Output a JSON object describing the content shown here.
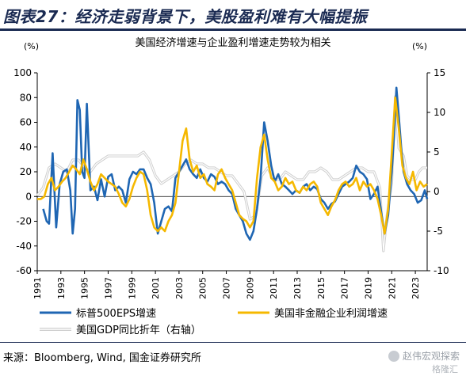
{
  "figure": {
    "title": "图表27：经济走弱背景下，美股盈利难有大幅提振",
    "source": "来源：Bloomberg, Wind, 国金证券研究所",
    "watermark": "赵伟宏观探索",
    "watermark_sub": "格隆汇"
  },
  "chart_data": {
    "type": "line",
    "title": "美国经济增速与企业盈利增速走势较为相关",
    "left_unit": "(%)",
    "right_unit": "(%)",
    "x_ticks": [
      "1991",
      "1993",
      "1995",
      "1997",
      "1999",
      "2001",
      "2003",
      "2005",
      "2007",
      "2009",
      "2011",
      "2013",
      "2015",
      "2017",
      "2019",
      "2021",
      "2023"
    ],
    "xlim": [
      1991,
      2024
    ],
    "ylim_left": [
      -60,
      100
    ],
    "yticks_left": [
      100,
      80,
      60,
      40,
      20,
      0,
      -20,
      -40,
      -60
    ],
    "ylim_right": [
      -10,
      15
    ],
    "yticks_right": [
      15,
      10,
      5,
      0,
      -5,
      -10
    ],
    "grid": false,
    "legend": "bottom",
    "series": [
      {
        "name": "标普500EPS增速",
        "axis": "left",
        "color": "#1f66b3",
        "x": [
          1991.5,
          1991.8,
          1992.0,
          1992.3,
          1992.6,
          1992.9,
          1993.2,
          1993.5,
          1993.8,
          1994.0,
          1994.2,
          1994.4,
          1994.6,
          1994.8,
          1995.0,
          1995.2,
          1995.5,
          1995.8,
          1996.1,
          1996.4,
          1996.7,
          1997.0,
          1997.3,
          1997.6,
          1997.9,
          1998.2,
          1998.5,
          1998.8,
          1999.1,
          1999.4,
          1999.7,
          2000.0,
          2000.3,
          2000.6,
          2000.9,
          2001.2,
          2001.5,
          2001.8,
          2002.1,
          2002.4,
          2002.7,
          2003.0,
          2003.3,
          2003.6,
          2003.9,
          2004.2,
          2004.5,
          2004.8,
          2005.1,
          2005.4,
          2005.7,
          2006.0,
          2006.3,
          2006.6,
          2006.9,
          2007.2,
          2007.5,
          2007.8,
          2008.1,
          2008.4,
          2008.7,
          2009.0,
          2009.3,
          2009.6,
          2009.9,
          2010.2,
          2010.5,
          2010.8,
          2011.1,
          2011.4,
          2011.7,
          2012.0,
          2012.3,
          2012.6,
          2012.9,
          2013.2,
          2013.5,
          2013.8,
          2014.1,
          2014.4,
          2014.7,
          2015.0,
          2015.3,
          2015.6,
          2015.9,
          2016.2,
          2016.5,
          2016.8,
          2017.1,
          2017.4,
          2017.7,
          2018.0,
          2018.3,
          2018.6,
          2018.9,
          2019.2,
          2019.5,
          2019.8,
          2020.1,
          2020.4,
          2020.7,
          2021.0,
          2021.2,
          2021.4,
          2021.6,
          2021.8,
          2022.0,
          2022.3,
          2022.6,
          2022.9,
          2023.2,
          2023.5,
          2023.8,
          2024.0
        ],
        "values": [
          -10,
          -20,
          -22,
          35,
          -25,
          10,
          20,
          22,
          5,
          -30,
          -10,
          78,
          70,
          20,
          15,
          75,
          5,
          8,
          -3,
          14,
          0,
          16,
          18,
          5,
          8,
          5,
          -5,
          14,
          20,
          18,
          22,
          22,
          15,
          10,
          -5,
          -30,
          -20,
          -10,
          -8,
          -12,
          15,
          20,
          25,
          30,
          22,
          18,
          15,
          22,
          15,
          12,
          18,
          16,
          10,
          12,
          10,
          5,
          2,
          -10,
          -15,
          -20,
          -30,
          -35,
          -28,
          -10,
          15,
          60,
          45,
          25,
          12,
          18,
          10,
          8,
          5,
          2,
          5,
          3,
          8,
          10,
          5,
          8,
          6,
          -2,
          -5,
          -10,
          -6,
          -4,
          2,
          8,
          10,
          12,
          15,
          25,
          20,
          18,
          14,
          -2,
          2,
          8,
          -12,
          -30,
          -15,
          20,
          50,
          88,
          65,
          40,
          20,
          10,
          5,
          2,
          -5,
          -3,
          5,
          -2
        ]
      },
      {
        "name": "美国非金融企业利润增速",
        "axis": "left",
        "color": "#f5b800",
        "x": [
          1991.0,
          1991.3,
          1991.6,
          1991.9,
          1992.2,
          1992.5,
          1992.8,
          1993.1,
          1993.4,
          1993.7,
          1994.0,
          1994.3,
          1994.6,
          1994.9,
          1995.2,
          1995.5,
          1995.8,
          1996.1,
          1996.4,
          1996.7,
          1997.0,
          1997.3,
          1997.6,
          1997.9,
          1998.2,
          1998.5,
          1998.8,
          1999.1,
          1999.4,
          1999.7,
          2000.0,
          2000.3,
          2000.6,
          2000.9,
          2001.2,
          2001.5,
          2001.8,
          2002.1,
          2002.4,
          2002.7,
          2003.0,
          2003.3,
          2003.6,
          2003.9,
          2004.2,
          2004.5,
          2004.8,
          2005.1,
          2005.4,
          2005.7,
          2006.0,
          2006.3,
          2006.6,
          2006.9,
          2007.2,
          2007.5,
          2007.8,
          2008.1,
          2008.4,
          2008.7,
          2009.0,
          2009.3,
          2009.6,
          2009.9,
          2010.2,
          2010.5,
          2010.8,
          2011.1,
          2011.4,
          2011.7,
          2012.0,
          2012.3,
          2012.6,
          2012.9,
          2013.2,
          2013.5,
          2013.8,
          2014.1,
          2014.4,
          2014.7,
          2015.0,
          2015.3,
          2015.6,
          2015.9,
          2016.2,
          2016.5,
          2016.8,
          2017.1,
          2017.4,
          2017.7,
          2018.0,
          2018.3,
          2018.6,
          2018.9,
          2019.2,
          2019.5,
          2019.8,
          2020.1,
          2020.4,
          2020.7,
          2021.0,
          2021.3,
          2021.6,
          2021.9,
          2022.2,
          2022.5,
          2022.8,
          2023.1,
          2023.4,
          2023.7,
          2024.0
        ],
        "values": [
          -2,
          -2,
          0,
          10,
          15,
          5,
          8,
          12,
          15,
          20,
          25,
          22,
          18,
          30,
          22,
          12,
          5,
          10,
          18,
          15,
          12,
          10,
          8,
          2,
          -5,
          -8,
          -2,
          8,
          15,
          20,
          18,
          5,
          -15,
          -25,
          -28,
          -25,
          -28,
          -20,
          -15,
          -5,
          20,
          45,
          55,
          30,
          20,
          25,
          15,
          18,
          10,
          8,
          5,
          18,
          22,
          15,
          10,
          5,
          -5,
          -15,
          -18,
          -20,
          -25,
          -20,
          15,
          40,
          50,
          30,
          15,
          12,
          5,
          8,
          15,
          10,
          12,
          5,
          3,
          8,
          5,
          10,
          12,
          8,
          -5,
          -10,
          -15,
          -8,
          -3,
          5,
          10,
          12,
          8,
          10,
          15,
          5,
          12,
          8,
          10,
          5,
          -2,
          -15,
          -30,
          -10,
          35,
          80,
          55,
          25,
          15,
          10,
          20,
          5,
          12,
          8,
          10
        ]
      },
      {
        "name": "美国GDP同比折年（右轴）",
        "axis": "right",
        "color": "#b3b3b3",
        "x": [
          1991.0,
          1991.5,
          1992.0,
          1992.5,
          1993.0,
          1993.5,
          1994.0,
          1994.5,
          1995.0,
          1995.5,
          1996.0,
          1996.5,
          1997.0,
          1997.5,
          1998.0,
          1998.5,
          1999.0,
          1999.5,
          2000.0,
          2000.5,
          2001.0,
          2001.5,
          2002.0,
          2002.5,
          2003.0,
          2003.5,
          2004.0,
          2004.5,
          2005.0,
          2005.5,
          2006.0,
          2006.5,
          2007.0,
          2007.5,
          2008.0,
          2008.5,
          2009.0,
          2009.5,
          2010.0,
          2010.5,
          2011.0,
          2011.5,
          2012.0,
          2012.5,
          2013.0,
          2013.5,
          2014.0,
          2014.5,
          2015.0,
          2015.5,
          2016.0,
          2016.5,
          2017.0,
          2017.5,
          2018.0,
          2018.5,
          2019.0,
          2019.5,
          2020.0,
          2020.3,
          2020.6,
          2021.0,
          2021.3,
          2021.6,
          2022.0,
          2022.3,
          2022.6,
          2023.0,
          2023.3,
          2023.6,
          2024.0
        ],
        "values": [
          -0.5,
          0.5,
          3.0,
          3.5,
          3.0,
          2.5,
          4.0,
          4.0,
          3.0,
          2.5,
          3.5,
          4.0,
          4.5,
          4.5,
          4.5,
          4.5,
          4.5,
          4.5,
          5.0,
          4.0,
          2.0,
          1.0,
          1.5,
          2.0,
          2.5,
          3.5,
          4.0,
          3.5,
          3.5,
          3.0,
          3.0,
          2.5,
          2.0,
          2.0,
          1.0,
          0.0,
          -3.5,
          -3.0,
          2.0,
          3.0,
          1.5,
          1.5,
          2.5,
          2.0,
          1.5,
          1.5,
          2.5,
          2.5,
          3.0,
          2.5,
          1.5,
          1.5,
          2.0,
          2.5,
          3.0,
          3.0,
          2.5,
          2.5,
          0.5,
          -7.5,
          -3.0,
          1.0,
          12.0,
          5.5,
          4.5,
          2.0,
          1.5,
          1.5,
          2.5,
          3.0,
          3.0
        ]
      }
    ]
  }
}
